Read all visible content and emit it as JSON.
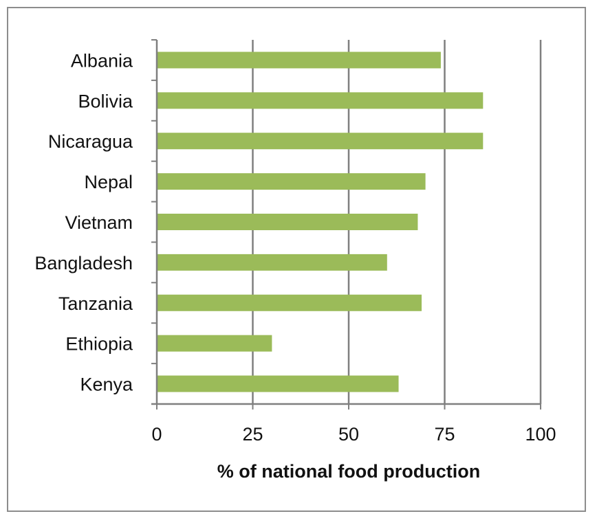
{
  "chart_data": {
    "type": "bar",
    "orientation": "horizontal",
    "title": "",
    "xlabel": "% of national food production",
    "ylabel": "",
    "categories": [
      "Albania",
      "Bolivia",
      "Nicaragua",
      "Nepal",
      "Vietnam",
      "Bangladesh",
      "Tanzania",
      "Ethiopia",
      "Kenya"
    ],
    "values": [
      74,
      85,
      85,
      70,
      68,
      60,
      69,
      30,
      63
    ],
    "xlim": [
      0,
      100
    ],
    "xticks": [
      "0",
      "25",
      "50",
      "75",
      "100"
    ],
    "grid": "vertical",
    "bar_color": "#9bbb59",
    "grid_color": "#7f7f7f"
  }
}
